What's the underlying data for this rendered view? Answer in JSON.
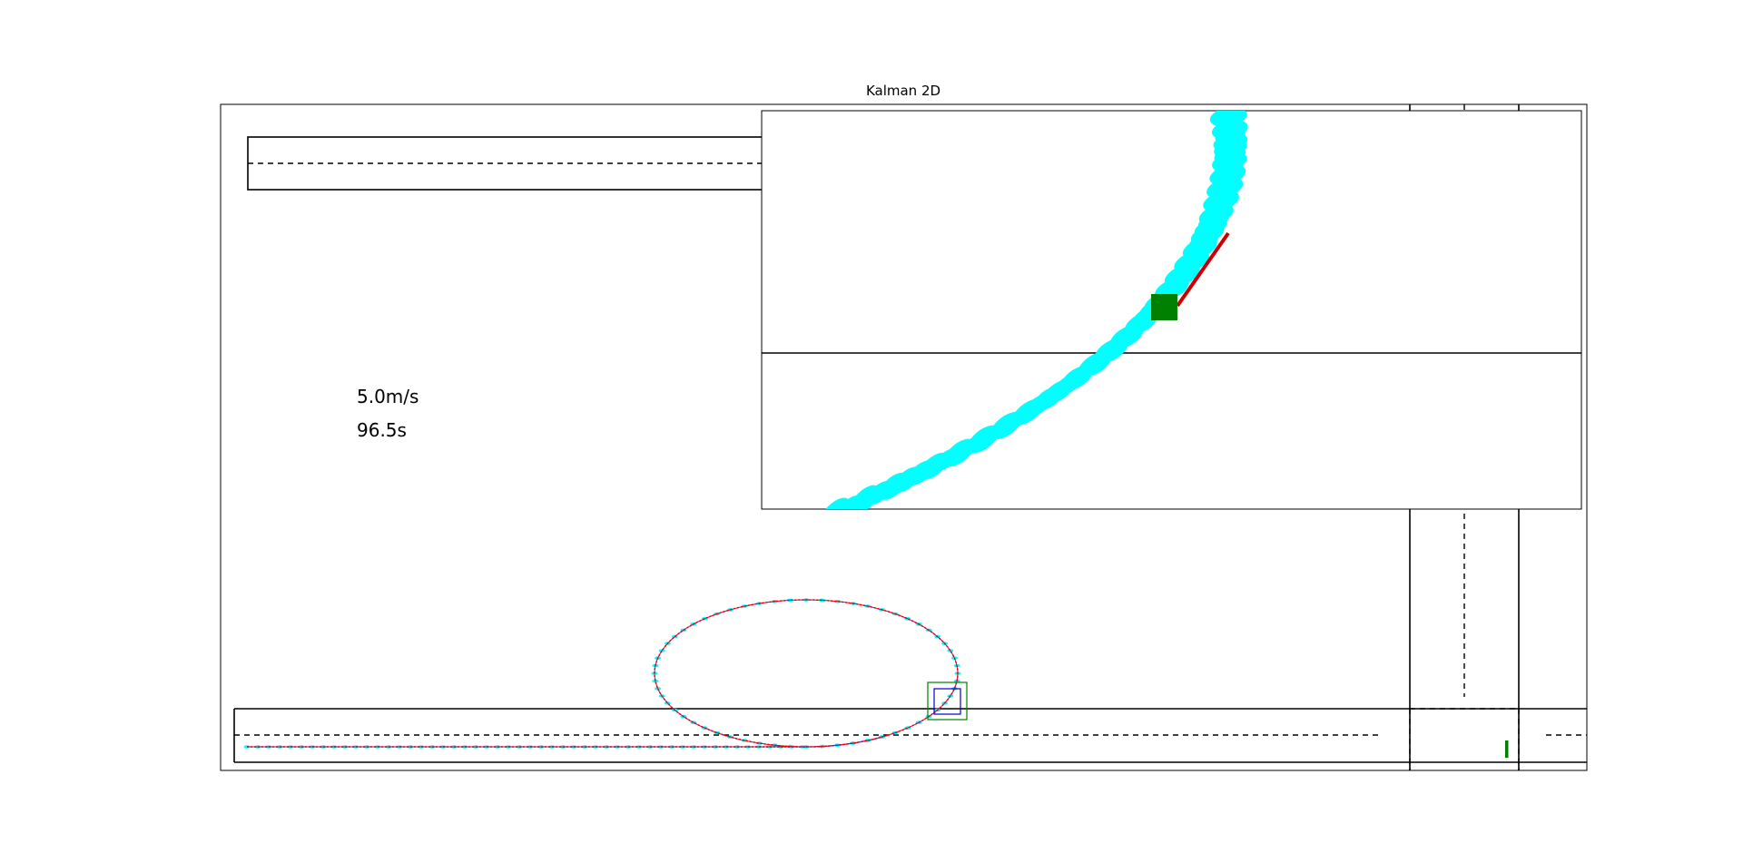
{
  "chart_data": {
    "type": "scatter",
    "title": "Kalman 2D",
    "xlabel": "",
    "ylabel": "",
    "grid": false,
    "annotations": [
      {
        "key": "speed",
        "text": "5.0m/s"
      },
      {
        "key": "time",
        "text": "96.5s"
      }
    ],
    "series": [
      {
        "style": "estimate-track",
        "color": "#ff0000"
      },
      {
        "style": "measurement-track",
        "color": "#0000cc"
      },
      {
        "style": "covariance-ellipses",
        "color": "#00ffff"
      },
      {
        "style": "heading-line",
        "color": "#cc0000"
      },
      {
        "style": "vehicle",
        "color": "#008000"
      }
    ]
  }
}
